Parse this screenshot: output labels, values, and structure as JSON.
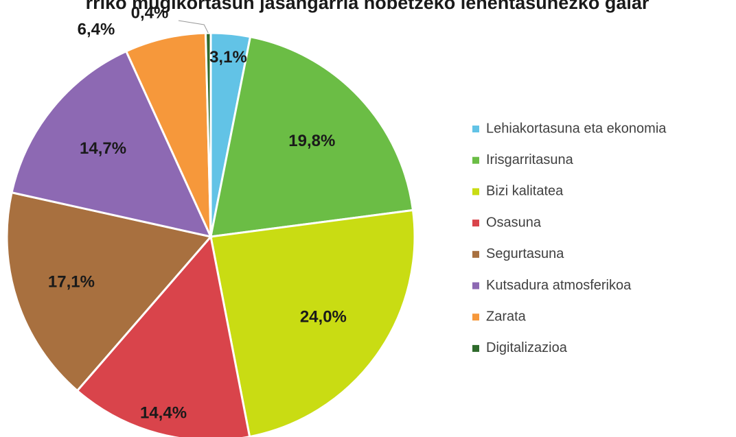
{
  "chart_data": {
    "type": "pie",
    "title": "rriko mugikortasun jasangarria hobetzeko lehentasunezko galar",
    "categories": [
      "Lehiakortasuna eta ekonomia",
      "Irisgarritasuna",
      "Bizi kalitatea",
      "Osasuna",
      "Segurtasuna",
      "Kutsadura atmosferikoa",
      "Zarata",
      "Digitalizazioa"
    ],
    "values": [
      3.1,
      19.8,
      24.0,
      14.4,
      17.1,
      14.7,
      6.4,
      0.4
    ],
    "value_labels": [
      "3,1%",
      "19,8%",
      "24,0%",
      "14,4%",
      "17,1%",
      "14,7%",
      "6,4%",
      "0,4%"
    ],
    "colors": [
      "#62c3e6",
      "#6bbd45",
      "#c9dc13",
      "#d9444b",
      "#a8703f",
      "#8d69b3",
      "#f6983b",
      "#2e6a2b"
    ],
    "legend": "right"
  }
}
